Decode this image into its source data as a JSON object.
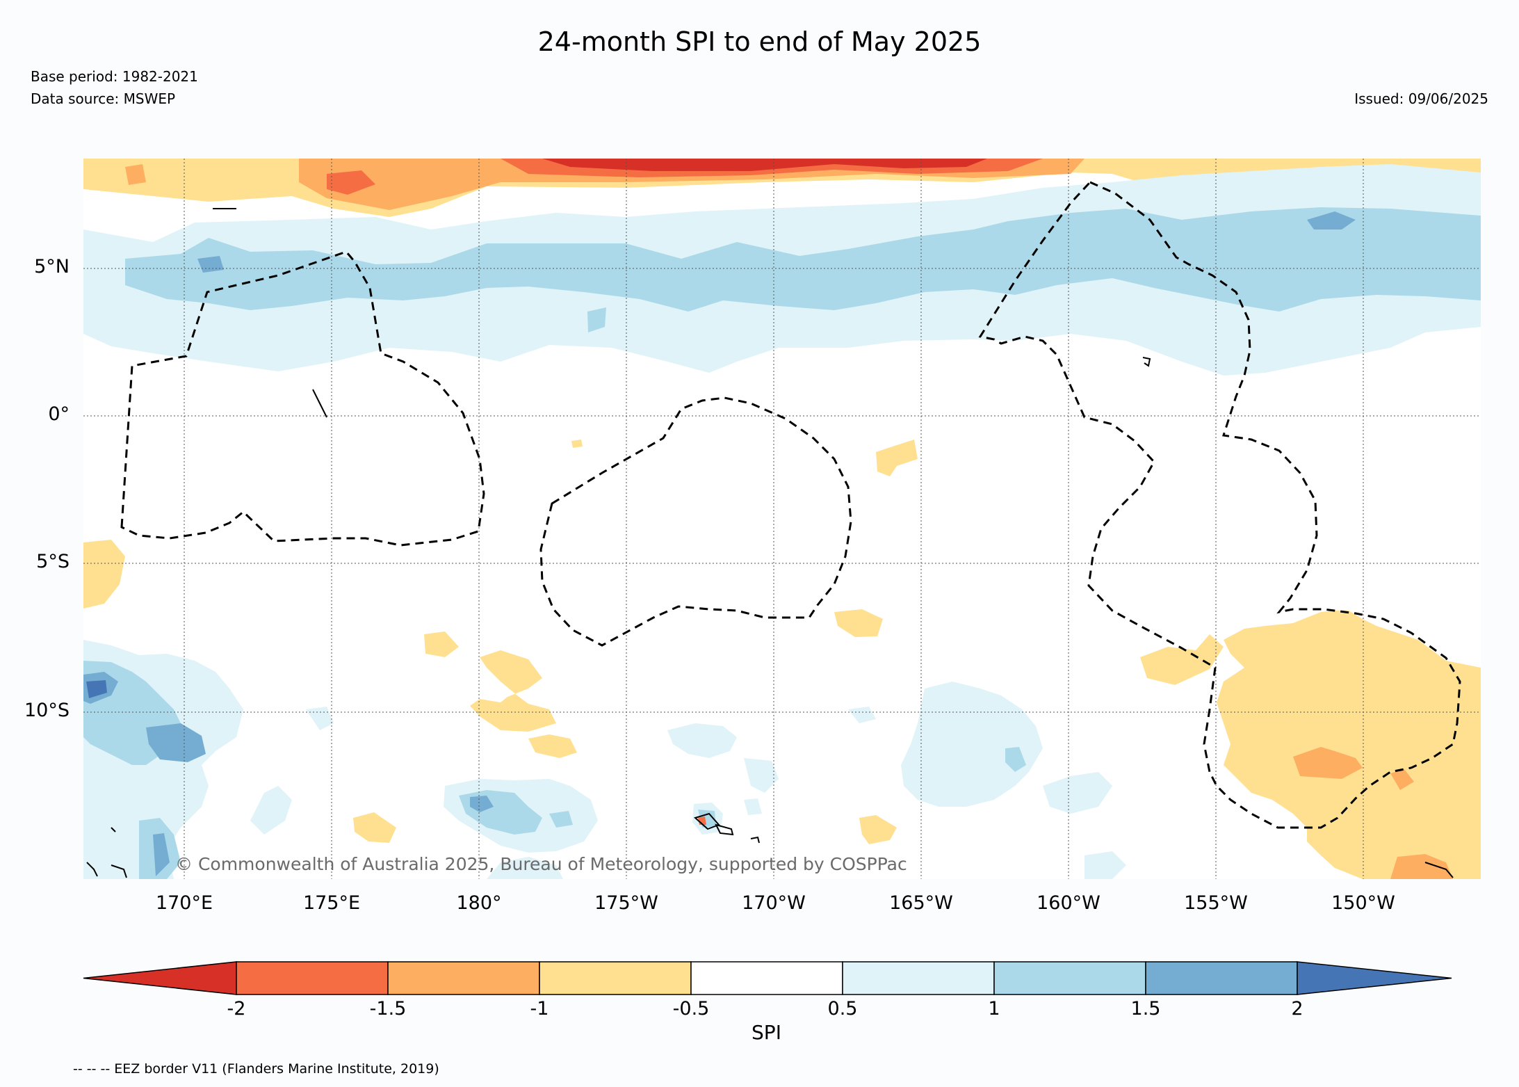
{
  "title": "24-month SPI to end of May 2025",
  "base_period": "Base period: 1982-2021",
  "data_source": "Data source: MSWEP",
  "issued": "Issued: 09/06/2025",
  "copyright": "© Commonwealth of Australia 2025, Bureau of Meteorology, supported by COSPPac",
  "latitude_labels": [
    "5°N",
    "0°",
    "5°S",
    "10°S"
  ],
  "longitude_labels": [
    "170°E",
    "175°E",
    "180°",
    "175°W",
    "170°W",
    "165°W",
    "160°W",
    "155°W",
    "150°W"
  ],
  "colorbar": {
    "label": "SPI",
    "ticks": [
      "-2",
      "-1.5",
      "-1",
      "-0.5",
      "0.5",
      "1",
      "1.5",
      "2"
    ],
    "colors": [
      "#d73027",
      "#f46d43",
      "#fdae61",
      "#fee090",
      "#ffffff",
      "#e0f3f8",
      "#abd9e9",
      "#74add1",
      "#4575b4"
    ]
  },
  "eez_legend": "-- -- -- EEZ border V11 (Flanders Marine Institute, 2019)"
}
